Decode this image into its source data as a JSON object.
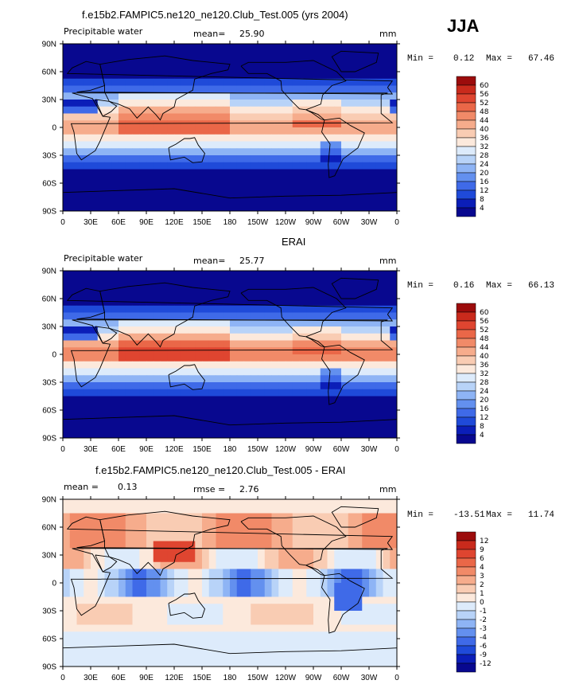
{
  "season": "JJA",
  "colors": {
    "abs_scale": [
      "#08088f",
      "#0b1eb8",
      "#1f4ad9",
      "#3f6ae8",
      "#6390ef",
      "#8eb4f5",
      "#b8d3f8",
      "#ddebfb",
      "#fce9dc",
      "#f9ccb3",
      "#f6ac8c",
      "#f18a68",
      "#ea6748",
      "#df4530",
      "#c92a1c",
      "#9c0c0c"
    ],
    "diff_scale": [
      "#08088f",
      "#0b1eb8",
      "#1f4ad9",
      "#3f6ae8",
      "#6390ef",
      "#8eb4f5",
      "#b8d3f8",
      "#ddebfb",
      "#fce9dc",
      "#f9ccb3",
      "#f6ac8c",
      "#f18a68",
      "#ea6748",
      "#df4530",
      "#c92a1c",
      "#9c0c0c"
    ]
  },
  "x_ticks": [
    "0",
    "30E",
    "60E",
    "90E",
    "120E",
    "150E",
    "180",
    "150W",
    "120W",
    "90W",
    "60W",
    "30W",
    "0"
  ],
  "y_ticks": [
    "90N",
    "60N",
    "30N",
    "0",
    "30S",
    "60S",
    "90S"
  ],
  "panels": [
    {
      "title": "f.e15b2.FAMPIC5.ne120_ne120.Club_Test.005 (yrs 2004)",
      "left_label": "Precipitable water",
      "stat_label": "mean=",
      "stat_value": "25.90",
      "units": "mm",
      "min_label": "Min =",
      "min_value": "0.12",
      "max_label": "Max =",
      "max_value": "67.46",
      "levels": [
        "60",
        "56",
        "52",
        "48",
        "44",
        "40",
        "36",
        "32",
        "28",
        "24",
        "20",
        "16",
        "12",
        "8",
        "4"
      ]
    },
    {
      "title": "ERAI",
      "left_label": "Precipitable water",
      "stat_label": "mean=",
      "stat_value": "25.77",
      "units": "mm",
      "min_label": "Min =",
      "min_value": "0.16",
      "max_label": "Max =",
      "max_value": "66.13",
      "levels": [
        "60",
        "56",
        "52",
        "48",
        "44",
        "40",
        "36",
        "32",
        "28",
        "24",
        "20",
        "16",
        "12",
        "8",
        "4"
      ]
    },
    {
      "title": "f.e15b2.FAMPIC5.ne120_ne120.Club_Test.005 - ERAI",
      "left_label": "mean =",
      "left_value": "0.13",
      "stat_label": "rmse =",
      "stat_value": "2.76",
      "units": "mm",
      "min_label": "Min =",
      "min_value": "-13.51",
      "max_label": "Max =",
      "max_value": "11.74",
      "levels": [
        "12",
        "9",
        "6",
        "4",
        "3",
        "2",
        "1",
        "0",
        "-1",
        "-2",
        "-3",
        "-4",
        "-6",
        "-9",
        "-12"
      ]
    }
  ],
  "chart_data": [
    {
      "type": "heatmap",
      "title": "f.e15b2.FAMPIC5.ne120_ne120.Club_Test.005 (yrs 2004)",
      "variable": "Precipitable water",
      "units": "mm",
      "mean": 25.9,
      "min": 0.12,
      "max": 67.46,
      "x_range": [
        0,
        360
      ],
      "y_range": [
        -90,
        90
      ],
      "zonal_mean_by_lat": {
        "lat": [
          90,
          60,
          30,
          0,
          -30,
          -60,
          -90
        ],
        "value": [
          8,
          18,
          36,
          46,
          22,
          10,
          2
        ]
      }
    },
    {
      "type": "heatmap",
      "title": "ERAI",
      "variable": "Precipitable water",
      "units": "mm",
      "mean": 25.77,
      "min": 0.16,
      "max": 66.13,
      "x_range": [
        0,
        360
      ],
      "y_range": [
        -90,
        90
      ],
      "zonal_mean_by_lat": {
        "lat": [
          90,
          60,
          30,
          0,
          -30,
          -60,
          -90
        ],
        "value": [
          8,
          18,
          36,
          46,
          22,
          10,
          2
        ]
      }
    },
    {
      "type": "heatmap",
      "title": "f.e15b2.FAMPIC5.ne120_ne120.Club_Test.005 - ERAI",
      "units": "mm",
      "mean": 0.13,
      "rmse": 2.76,
      "min": -13.51,
      "max": 11.74,
      "x_range": [
        0,
        360
      ],
      "y_range": [
        -90,
        90
      ]
    }
  ]
}
